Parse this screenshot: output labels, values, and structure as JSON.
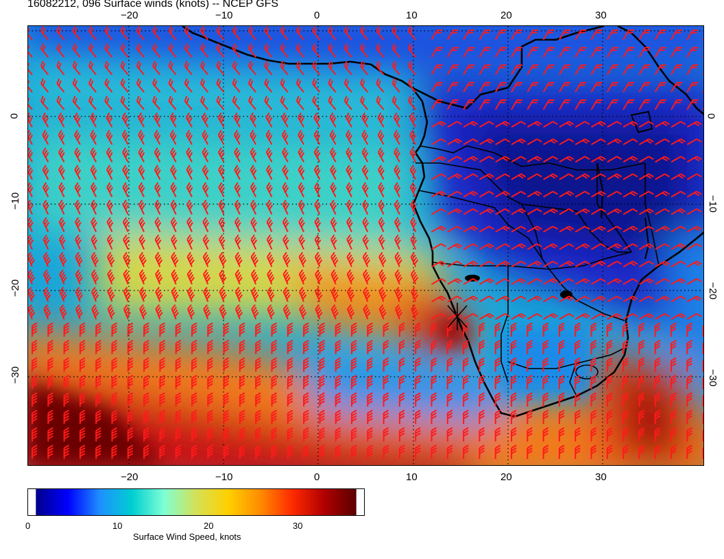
{
  "title": "16082212, 096 Surface winds (knots) -- NCEP GFS",
  "map": {
    "lon_range": [
      -30,
      40
    ],
    "lat_range": [
      -40,
      10
    ],
    "lon_ticks": [
      "−20",
      "−10",
      "0",
      "10",
      "20",
      "30"
    ],
    "lat_ticks": [
      "0",
      "−10",
      "−20",
      "−30"
    ],
    "barb_color": "#ff1a1a",
    "coast_color": "#000000",
    "gridline_style": "dotted"
  },
  "colorbar": {
    "label": "Surface Wind Speed, knots",
    "tick_labels": [
      "0",
      "10",
      "20",
      "30"
    ],
    "range": [
      0,
      37
    ],
    "colors": [
      "#00008b",
      "#0000ff",
      "#1e90ff",
      "#00ced1",
      "#7fffd4",
      "#d4e157",
      "#ffd000",
      "#ff8c00",
      "#ff2a00",
      "#b00000",
      "#5a0000"
    ]
  }
}
